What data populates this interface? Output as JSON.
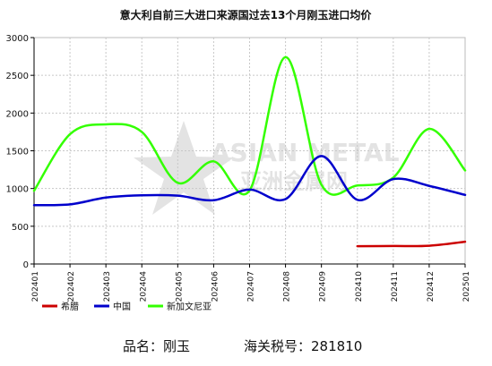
{
  "chart_data": {
    "type": "line",
    "title": "意大利自前三大进口来源国过去13个月刚玉进口均价",
    "watermark": {
      "en": "ASIAN METAL",
      "cn": "亚洲金属网"
    },
    "categories": [
      "202401",
      "202402",
      "202403",
      "202404",
      "202405",
      "202406",
      "202407",
      "202408",
      "202409",
      "202410",
      "202411",
      "202412",
      "202501"
    ],
    "ylim": [
      0,
      3000
    ],
    "yticks": [
      0,
      500,
      1000,
      1500,
      2000,
      2500,
      3000
    ],
    "grid": true,
    "legend_position": "bottom-left",
    "series": [
      {
        "name": "希腊",
        "color": "#cc0000",
        "values": [
          null,
          null,
          null,
          null,
          null,
          null,
          null,
          null,
          null,
          235,
          238,
          242,
          295
        ]
      },
      {
        "name": "中国",
        "color": "#0000cc",
        "values": [
          780,
          790,
          880,
          910,
          905,
          845,
          985,
          860,
          1430,
          850,
          1125,
          1035,
          915
        ]
      },
      {
        "name": "新加文尼亚",
        "color": "#33ff00",
        "values": [
          970,
          1720,
          1850,
          1750,
          1075,
          1360,
          975,
          2740,
          1050,
          1040,
          1145,
          1790,
          1240
        ]
      }
    ]
  },
  "footer": {
    "product_label": "品名：",
    "product_value": "刚玉",
    "hs_label": "海关税号：",
    "hs_value": "281810"
  }
}
